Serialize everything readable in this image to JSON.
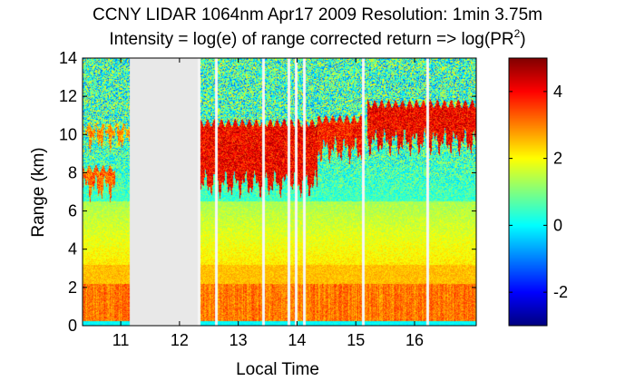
{
  "chart_data": {
    "type": "heatmap",
    "title_line1": "CCNY LIDAR 1064nm Apr17 2009 Resolution: 1min 3.75m",
    "title_line2_prefix": "Intensity = log(e) of range corrected return => log(PR",
    "title_line2_sup": "2",
    "title_line2_suffix": ")",
    "xlabel": "Local Time",
    "ylabel": "Range (km)",
    "xlim": [
      10.35,
      17.05
    ],
    "ylim": [
      0,
      14
    ],
    "xticks": [
      11,
      12,
      13,
      14,
      15,
      16
    ],
    "xtick_labels": [
      "11",
      "12",
      "13",
      "14",
      "15",
      "16"
    ],
    "yticks": [
      0,
      2,
      4,
      6,
      8,
      10,
      12,
      14
    ],
    "ytick_labels": [
      "0",
      "2",
      "4",
      "6",
      "8",
      "10",
      "12",
      "14"
    ],
    "colorbar": {
      "colormap": "jet",
      "clim": [
        -3,
        5
      ],
      "ticks": [
        -2,
        0,
        2,
        4
      ],
      "tick_labels": [
        "-2",
        "0",
        "2",
        "4"
      ]
    },
    "no_data_intervals": [
      [
        11.15,
        12.3
      ]
    ],
    "data_gaps_time": [
      12.32,
      12.62,
      13.42,
      13.85,
      13.98,
      14.12,
      15.12,
      16.22
    ],
    "cloud_layers": [
      {
        "start": 10.35,
        "end": 11.15,
        "base_km": 9.8,
        "top_km": 10.4,
        "peak": 3.6
      },
      {
        "start": 10.35,
        "end": 10.9,
        "base_km": 7.2,
        "top_km": 8.2,
        "peak": 4.0
      },
      {
        "start": 12.3,
        "end": 14.35,
        "base_km": 7.4,
        "top_km": 10.6,
        "peak": 4.8
      },
      {
        "start": 14.35,
        "end": 15.1,
        "base_km": 9.2,
        "top_km": 10.8,
        "peak": 4.6
      },
      {
        "start": 15.2,
        "end": 17.05,
        "base_km": 9.6,
        "top_km": 11.6,
        "peak": 4.8
      }
    ],
    "aerosol_layer": {
      "top_km": 2.2,
      "value": 3.0
    },
    "background_value": 0.5
  }
}
